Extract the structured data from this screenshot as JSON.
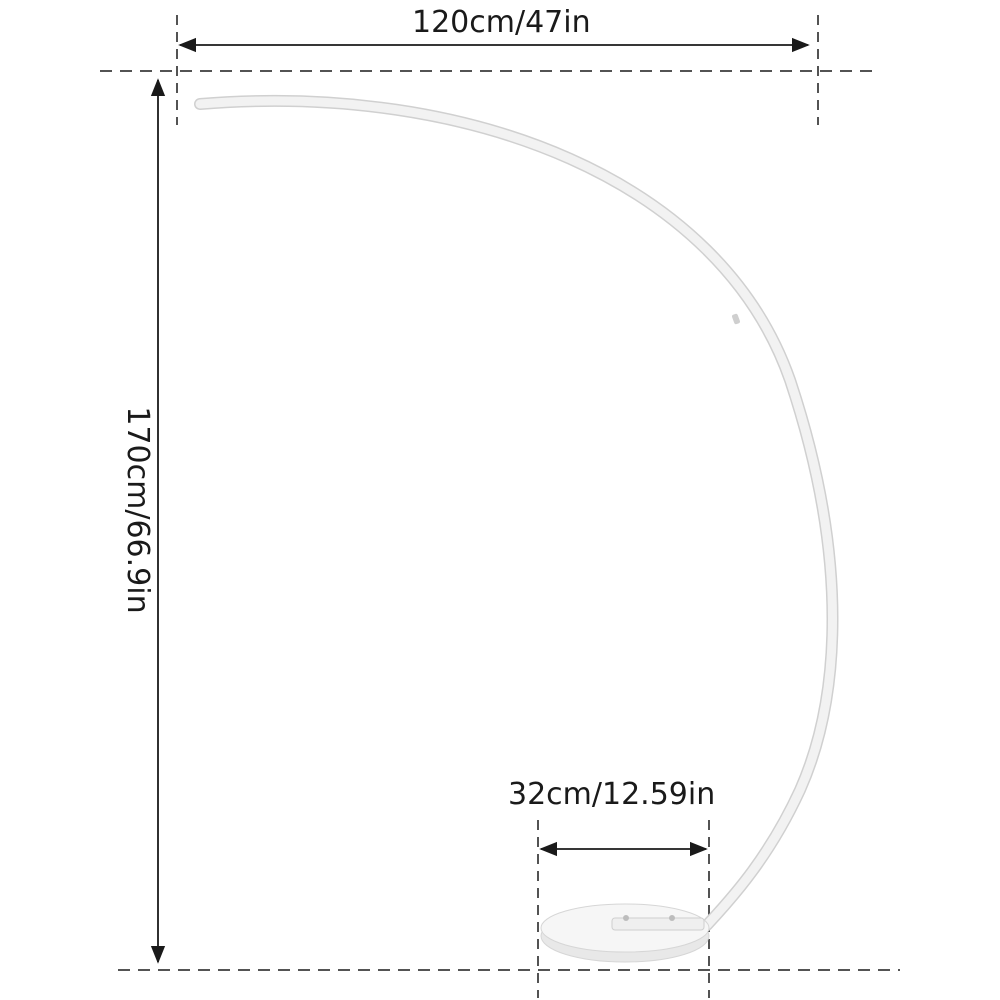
{
  "dimensions": {
    "width_label": "120cm/47in",
    "height_label": "170cm/66.9in",
    "base_label": "32cm/12.59in"
  },
  "colors": {
    "line": "#1a1a1a",
    "lamp_arc": "#f2f2f2",
    "lamp_arc_edge": "#d0d0d0",
    "base_fill": "#f4f4f4",
    "base_edge": "#d6d6d6"
  }
}
